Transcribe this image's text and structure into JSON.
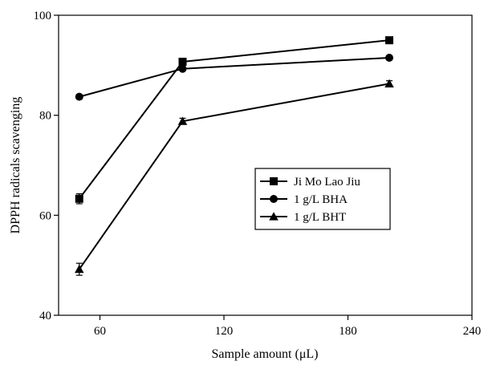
{
  "chart_data": {
    "type": "line",
    "title": "",
    "xlabel": "Sample amount (μL)",
    "ylabel": "DPPH radicals scavenging",
    "xlim": [
      40,
      240
    ],
    "ylim": [
      40,
      100
    ],
    "xticks": [
      60,
      120,
      180,
      240
    ],
    "yticks": [
      40,
      60,
      80,
      100
    ],
    "grid": false,
    "legend_position": "center-right",
    "x": [
      50,
      100,
      200
    ],
    "series": [
      {
        "name": "Ji Mo Lao Jiu",
        "marker": "square",
        "values": [
          63.3,
          90.7,
          95.0
        ],
        "errors": [
          1.0,
          0.5,
          0.4
        ]
      },
      {
        "name": "1 g/L BHA",
        "marker": "circle",
        "values": [
          83.7,
          89.3,
          91.5
        ],
        "errors": [
          0.4,
          0.4,
          0.4
        ]
      },
      {
        "name": "1 g/L BHT",
        "marker": "triangle",
        "values": [
          49.2,
          78.8,
          86.3
        ],
        "errors": [
          1.2,
          0.6,
          0.6
        ]
      }
    ]
  },
  "colors": {
    "line": "#000000",
    "background": "#ffffff"
  }
}
